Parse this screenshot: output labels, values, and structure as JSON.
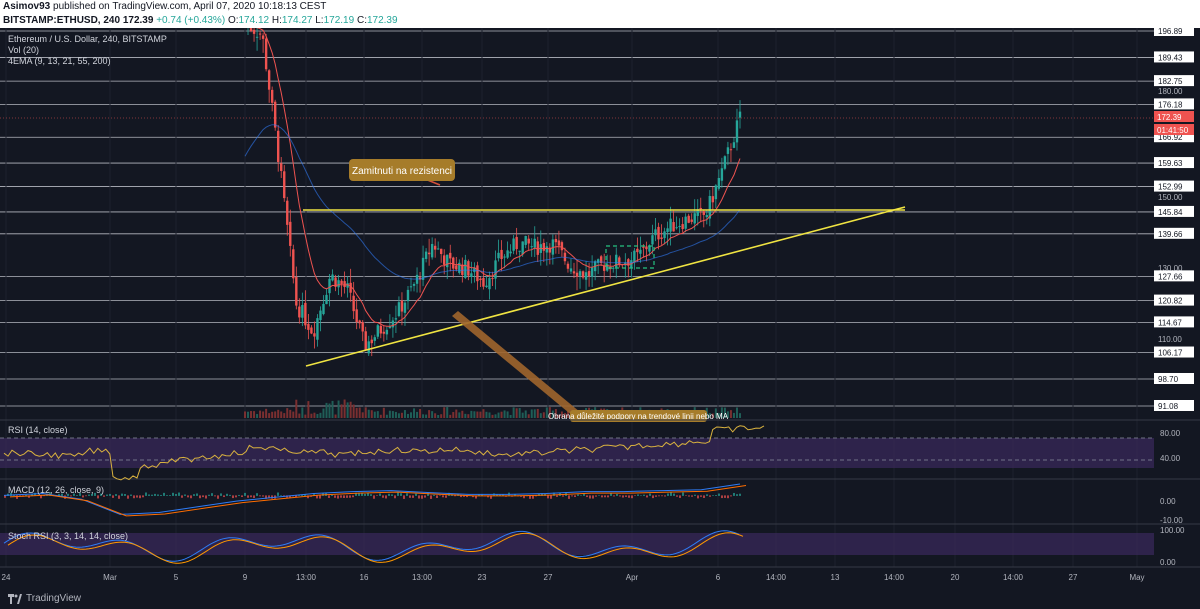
{
  "header": {
    "publisher": "Asimov93",
    "published_text": "published on TradingView.com, April 07, 2020 10:18:13 CEST",
    "symbol": "BITSTAMP:ETHUSD, 240",
    "last": "172.39",
    "change": "+0.74 (+0.43%)",
    "open_label": "O:",
    "open": "174.12",
    "high_label": "H:",
    "high": "174.27",
    "low_label": "L:",
    "low": "172.19",
    "close_label": "C:",
    "close": "172.39"
  },
  "legend": {
    "title": "Ethereum / U.S. Dollar, 240, BITSTAMP",
    "vol": "Vol (20)",
    "ema": "4EMA (9, 13, 21, 55, 200)"
  },
  "annotations": {
    "resistance_label": "Zamitnuti na rezistenci",
    "bottom_label": "Obrana důležité podpory na trendové linii nebo MA"
  },
  "price_scale": [
    "196.89",
    "189.43",
    "182.75",
    "180.00",
    "176.18",
    "166.92",
    "159.63",
    "152.99",
    "150.00",
    "145.84",
    "139.66",
    "130.00",
    "127.66",
    "120.82",
    "114.67",
    "110.00",
    "106.17",
    "98.70",
    "91.08"
  ],
  "current_price_tag": "172.39",
  "countdown_tag": "01:41:50",
  "indicators": {
    "rsi": {
      "label": "RSI (14, close)",
      "levels": [
        "80.00",
        "40.00"
      ]
    },
    "macd": {
      "label": "MACD (12, 26, close, 9)",
      "levels": [
        "0.00",
        "-10.00"
      ]
    },
    "stoch": {
      "label": "Stoch RSI (3, 3, 14, 14, close)",
      "levels": [
        "100.00",
        "0.00"
      ]
    }
  },
  "time_axis": [
    "24",
    "Mar",
    "5",
    "9",
    "13:00",
    "16",
    "13:00",
    "23",
    "27",
    "Apr",
    "6",
    "14:00",
    "13",
    "14:00",
    "20",
    "14:00",
    "27",
    "May"
  ],
  "footer": {
    "brand": "TradingView"
  },
  "colors": {
    "background": "#131722",
    "bullish": "#26a69a",
    "bearish": "#ef5350",
    "trendline": "#f0e442",
    "annotation": "#a67c2a",
    "rsi_line": "#d9b23f"
  },
  "chart_data": [
    {
      "type": "candlestick",
      "title": "Ethereum / U.S. Dollar, 240, BITSTAMP",
      "x_ticks": [
        "24",
        "Mar",
        "5",
        "9",
        "13:00",
        "16",
        "13:00",
        "23",
        "27",
        "Apr",
        "6",
        "14:00",
        "13",
        "14:00",
        "20",
        "14:00",
        "27",
        "May"
      ],
      "ylim": [
        88,
        200
      ],
      "horizontal_levels": [
        196.89,
        189.43,
        182.75,
        176.18,
        166.92,
        159.63,
        152.99,
        145.84,
        139.66,
        127.66,
        120.82,
        114.67,
        106.17,
        98.7,
        91.08
      ],
      "resistance_line": 145.84,
      "trendline": {
        "from": [
          "Mar 13",
          105.0
        ],
        "to": [
          "Apr 10",
          145.84
        ]
      },
      "approx_close_path": [
        [
          "Mar 9",
          199
        ],
        [
          "Mar 11",
          196
        ],
        [
          "Mar 12",
          160
        ],
        [
          "Mar 12",
          120
        ],
        [
          "Mar 13",
          112
        ],
        [
          "Mar 14",
          128
        ],
        [
          "Mar 15",
          124
        ],
        [
          "Mar 16",
          108
        ],
        [
          "Mar 17",
          113
        ],
        [
          "Mar 18",
          118
        ],
        [
          "Mar 19",
          126
        ],
        [
          "Mar 20",
          137
        ],
        [
          "Mar 21",
          131
        ],
        [
          "Mar 22",
          130
        ],
        [
          "Mar 23",
          126
        ],
        [
          "Mar 24",
          133
        ],
        [
          "Mar 25",
          137
        ],
        [
          "Mar 26",
          136
        ],
        [
          "Mar 27",
          137
        ],
        [
          "Mar 28",
          131
        ],
        [
          "Mar 29",
          128
        ],
        [
          "Mar 30",
          131
        ],
        [
          "Mar 31",
          132
        ],
        [
          "Apr 1",
          133
        ],
        [
          "Apr 2",
          139
        ],
        [
          "Apr 3",
          142
        ],
        [
          "Apr 4",
          144
        ],
        [
          "Apr 5",
          145
        ],
        [
          "Apr 6",
          158
        ],
        [
          "Apr 7",
          172.39
        ]
      ]
    },
    {
      "type": "line",
      "name": "RSI (14, close)",
      "ylim": [
        20,
        90
      ],
      "levels": [
        80,
        40
      ],
      "values": [
        52,
        50,
        48,
        55,
        18,
        35,
        42,
        47,
        52,
        60,
        55,
        53,
        50,
        54,
        56,
        55,
        57,
        53,
        50,
        52,
        55,
        57,
        60,
        63,
        65,
        68,
        85,
        87
      ]
    },
    {
      "type": "line",
      "name": "MACD (12, 26, close, 9)",
      "ylim": [
        -14,
        6
      ],
      "levels": [
        0,
        -10
      ],
      "values": [
        0,
        1,
        -2,
        -10,
        -9,
        -6,
        -3,
        -1,
        1,
        2,
        2.5,
        1.5,
        0.5,
        0.5,
        1,
        2,
        2,
        2.5,
        3,
        6
      ]
    },
    {
      "type": "line",
      "name": "Stoch RSI (3, 3, 14, 14, close)",
      "ylim": [
        0,
        100
      ],
      "levels": [
        100,
        0
      ]
    }
  ]
}
